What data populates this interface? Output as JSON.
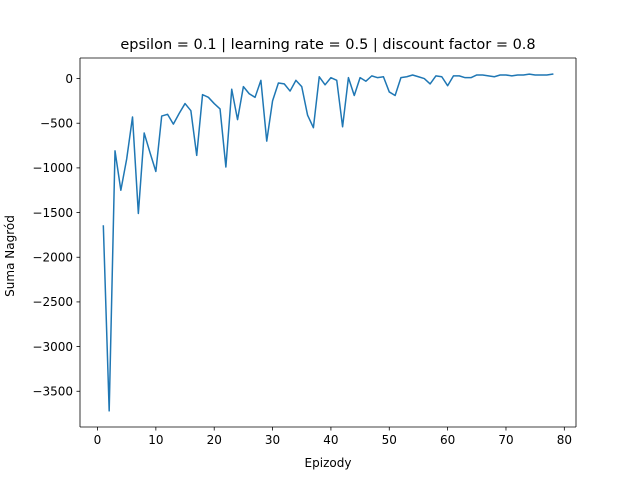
{
  "chart_data": {
    "type": "line",
    "title": "epsilon = 0.1 | learning rate = 0.5 | discount factor = 0.8",
    "xlabel": "Epizody",
    "ylabel": "Suma Nagród",
    "xlim": [
      -3,
      82
    ],
    "ylim": [
      -3900,
      230
    ],
    "xticks": [
      0,
      10,
      20,
      30,
      40,
      50,
      60,
      70,
      80
    ],
    "yticks": [
      0,
      -500,
      -1000,
      -1500,
      -2000,
      -2500,
      -3000,
      -3500
    ],
    "ytick_labels": [
      "0",
      "−500",
      "−1000",
      "−1500",
      "−2000",
      "−2500",
      "−3000",
      "−3500"
    ],
    "grid": false,
    "line_color": "#1f77b4",
    "series": [
      {
        "x": [
          1,
          2,
          3,
          4,
          5,
          6,
          7,
          8,
          9,
          10,
          11,
          12,
          13,
          14,
          15,
          16,
          17,
          18,
          19,
          20,
          21,
          22,
          23,
          24,
          25,
          26,
          27,
          28,
          29,
          30,
          31,
          32,
          33,
          34,
          35,
          36,
          37,
          38,
          39,
          40,
          41,
          42,
          43,
          44,
          45,
          46,
          47,
          48,
          49,
          50,
          51,
          52,
          53,
          54,
          55,
          56,
          57,
          58,
          59,
          60,
          61,
          62,
          63,
          64,
          65,
          66,
          67,
          68,
          69,
          70,
          71,
          72,
          73,
          74,
          75,
          76,
          77,
          78
        ],
        "y": [
          -1650,
          -3720,
          -810,
          -1250,
          -900,
          -430,
          -1510,
          -610,
          -830,
          -1040,
          -420,
          -400,
          -510,
          -390,
          -280,
          -360,
          -860,
          -180,
          -210,
          -280,
          -340,
          -990,
          -120,
          -460,
          -90,
          -170,
          -210,
          -20,
          -700,
          -250,
          -50,
          -60,
          -140,
          -20,
          -90,
          -410,
          -550,
          20,
          -70,
          10,
          -20,
          -540,
          10,
          -190,
          10,
          -30,
          30,
          10,
          20,
          -150,
          -190,
          10,
          20,
          40,
          20,
          0,
          -60,
          30,
          20,
          -80,
          30,
          30,
          10,
          10,
          40,
          40,
          30,
          20,
          40,
          40,
          30,
          40,
          40,
          50,
          40,
          40,
          40,
          50
        ]
      }
    ]
  }
}
